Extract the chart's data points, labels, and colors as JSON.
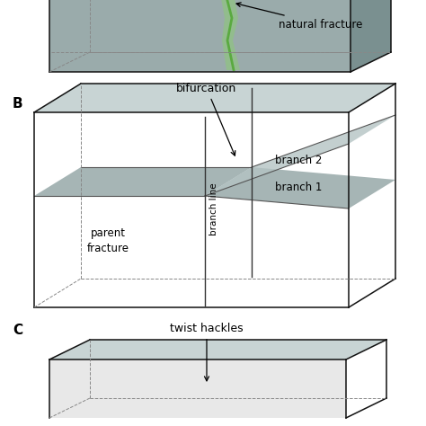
{
  "bg_color": "#ffffff",
  "gray_face": "#9aabab",
  "gray_face_light": "#b5c4c4",
  "gray_face_dark": "#7a9090",
  "gray_top": "#c8d4d4",
  "green_line": "#5aaa40",
  "green_fill": "#8dc87a",
  "dashed_color": "#888888",
  "box_color": "#111111",
  "label_B": "B",
  "label_C": "C",
  "label_bifurcation": "bifurcation",
  "label_branch1": "branch 1",
  "label_branch2": "branch 2",
  "label_parent": "parent\nfracture",
  "label_branch_line": "branch line",
  "label_natural": "natural fracture",
  "label_twist": "twist hackles"
}
